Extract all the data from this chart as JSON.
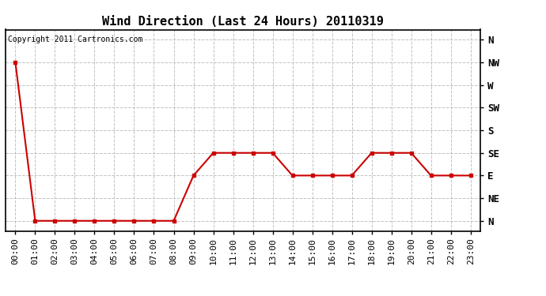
{
  "title": "Wind Direction (Last 24 Hours) 20110319",
  "copyright": "Copyright 2011 Cartronics.com",
  "x_labels": [
    "00:00",
    "01:00",
    "02:00",
    "03:00",
    "04:00",
    "05:00",
    "06:00",
    "07:00",
    "08:00",
    "09:00",
    "10:00",
    "11:00",
    "12:00",
    "13:00",
    "14:00",
    "15:00",
    "16:00",
    "17:00",
    "18:00",
    "19:00",
    "20:00",
    "21:00",
    "22:00",
    "23:00"
  ],
  "y_ticks": [
    0,
    45,
    90,
    135,
    180,
    225,
    270,
    315,
    360
  ],
  "y_labels": [
    "N",
    "NE",
    "E",
    "SE",
    "S",
    "SW",
    "W",
    "NW",
    "N"
  ],
  "data_values": [
    315,
    0,
    0,
    0,
    0,
    0,
    0,
    0,
    0,
    90,
    135,
    135,
    135,
    135,
    90,
    90,
    90,
    90,
    135,
    135,
    135,
    90,
    90,
    90
  ],
  "line_color": "#cc0000",
  "marker": "s",
  "marker_size": 3,
  "bg_color": "#ffffff",
  "plot_bg_color": "#ffffff",
  "grid_color": "#bbbbbb",
  "title_fontsize": 11,
  "copyright_fontsize": 7,
  "tick_fontsize": 8,
  "ylim": [
    -20,
    380
  ]
}
